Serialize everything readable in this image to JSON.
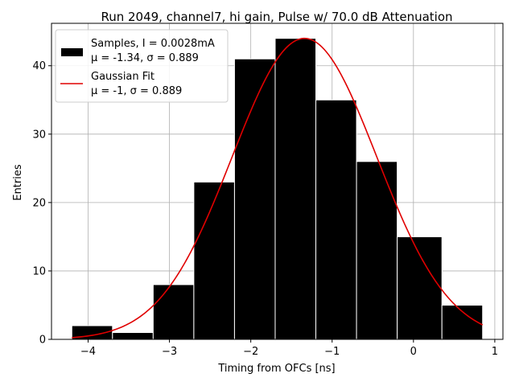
{
  "chart_data": {
    "type": "bar",
    "title": "Run 2049, channel7, hi gain, Pulse w/ 70.0 dB Attenuation",
    "xlabel": "Timing from OFCs [ns]",
    "ylabel": "Entries",
    "xlim": [
      -4.45,
      1.1
    ],
    "ylim": [
      0,
      46.2
    ],
    "xticks": [
      -4,
      -3,
      -2,
      -1,
      0,
      1
    ],
    "xtick_labels": [
      "−4",
      "−3",
      "−2",
      "−1",
      "0",
      "1"
    ],
    "yticks": [
      0,
      10,
      20,
      30,
      40
    ],
    "ytick_labels": [
      "0",
      "10",
      "20",
      "30",
      "40"
    ],
    "grid": true,
    "legend_position": "top-left",
    "histogram": {
      "name": "Samples, I = 0.0028mA",
      "stats_label": "μ = -1.34, σ = 0.889",
      "color": "#000000",
      "edge_color": "#ffffff",
      "bins": [
        {
          "left": -4.2,
          "right": -3.7,
          "count": 2
        },
        {
          "left": -3.7,
          "right": -3.2,
          "count": 1
        },
        {
          "left": -3.2,
          "right": -2.7,
          "count": 8
        },
        {
          "left": -2.7,
          "right": -2.2,
          "count": 23
        },
        {
          "left": -2.2,
          "right": -1.7,
          "count": 41
        },
        {
          "left": -1.7,
          "right": -1.2,
          "count": 44
        },
        {
          "left": -1.2,
          "right": -0.7,
          "count": 35
        },
        {
          "left": -0.7,
          "right": -0.2,
          "count": 26
        },
        {
          "left": -0.2,
          "right": 0.35,
          "count": 15
        },
        {
          "left": 0.35,
          "right": 0.85,
          "count": 5
        }
      ]
    },
    "fit": {
      "name": "Gaussian Fit",
      "stats_label": "μ = -1, σ = 0.889",
      "color": "#e00000",
      "amplitude": 44,
      "mean": -1.34,
      "sigma": 0.889,
      "x_range": [
        -4.2,
        0.85
      ]
    }
  }
}
